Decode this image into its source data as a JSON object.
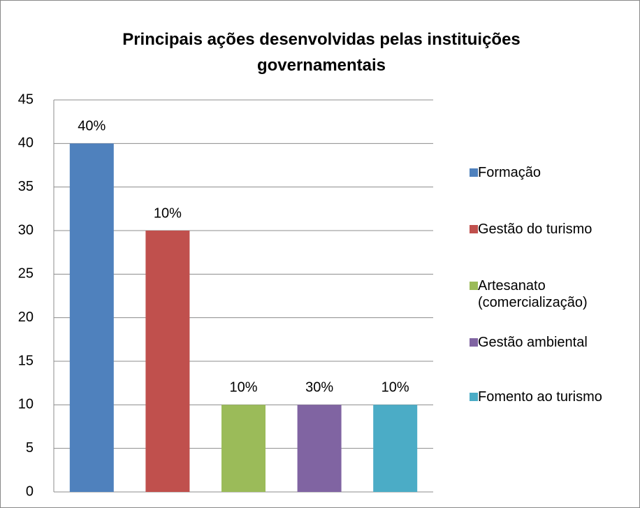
{
  "chart_data": {
    "type": "bar",
    "title": "Principais ações desenvolvidas pelas instituições governamentais",
    "categories": [
      null,
      null,
      null,
      null,
      null
    ],
    "series": [
      {
        "name": "Formação",
        "color": "#4f81bd",
        "values": [
          40,
          null,
          null,
          null,
          null
        ]
      },
      {
        "name": "Gestão do turismo",
        "color": "#c0504d",
        "values": [
          null,
          30,
          null,
          null,
          null
        ]
      },
      {
        "name": "Artesanato (comercialização)",
        "color": "#9bbb59",
        "values": [
          null,
          null,
          10,
          null,
          null
        ]
      },
      {
        "name": "Gestão ambiental",
        "color": "#8064a2",
        "values": [
          null,
          null,
          null,
          10,
          null
        ]
      },
      {
        "name": "Fomento ao turismo",
        "color": "#4bacc6",
        "values": [
          null,
          null,
          null,
          null,
          10
        ]
      }
    ],
    "annotations": [
      "40%",
      "10%",
      "10%",
      "30%",
      "10%"
    ],
    "ylim": [
      0,
      45
    ],
    "yticks": [
      0,
      5,
      10,
      15,
      20,
      25,
      30,
      35,
      40,
      45
    ],
    "grid": true,
    "legend": "right"
  }
}
